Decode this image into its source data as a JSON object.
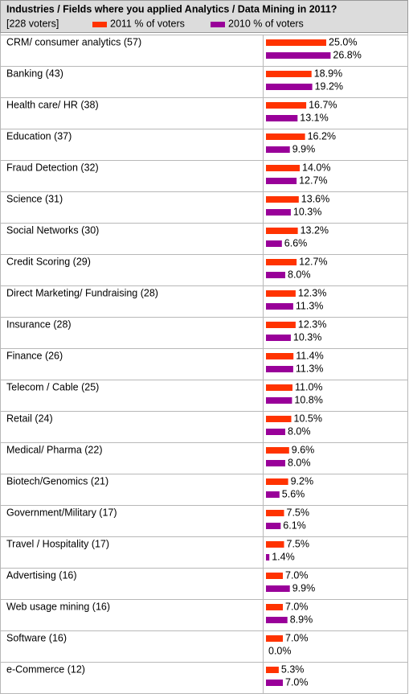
{
  "chart_data": {
    "type": "bar",
    "title": "Industries / Fields where you applied Analytics / Data Mining in 2011?",
    "subtitle": "[228 voters]",
    "categories": [
      "CRM/ consumer analytics (57)",
      "Banking (43)",
      "Health care/ HR (38)",
      "Education (37)",
      "Fraud Detection (32)",
      "Science (31)",
      "Social Networks (30)",
      "Credit Scoring (29)",
      "Direct Marketing/ Fundraising (28)",
      "Insurance (28)",
      "Finance (26)",
      "Telecom / Cable (25)",
      "Retail (24)",
      "Medical/ Pharma (22)",
      "Biotech/Genomics (21)",
      "Government/Military (17)",
      "Travel / Hospitality (17)",
      "Advertising (16)",
      "Web usage mining (16)",
      "Software (16)",
      "e-Commerce (12)"
    ],
    "series": [
      {
        "name": "2011 % of voters",
        "color": "#ff3300",
        "values": [
          25.0,
          18.9,
          16.7,
          16.2,
          14.0,
          13.6,
          13.2,
          12.7,
          12.3,
          12.3,
          11.4,
          11.0,
          10.5,
          9.6,
          9.2,
          7.5,
          7.5,
          7.0,
          7.0,
          7.0,
          5.3
        ],
        "value_labels": [
          "25.0%",
          "18.9%",
          "16.7%",
          "16.2%",
          "14.0%",
          "13.6%",
          "13.2%",
          "12.7%",
          "12.3%",
          "12.3%",
          "11.4%",
          "11.0%",
          "10.5%",
          "9.6%",
          "9.2%",
          "7.5%",
          "7.5%",
          "7.0%",
          "7.0%",
          "7.0%",
          "5.3%"
        ]
      },
      {
        "name": "2010 % of voters",
        "color": "#990099",
        "values": [
          26.8,
          19.2,
          13.1,
          9.9,
          12.7,
          10.3,
          6.6,
          8.0,
          11.3,
          10.3,
          11.3,
          10.8,
          8.0,
          8.0,
          5.6,
          6.1,
          1.4,
          9.9,
          8.9,
          0.0,
          7.0
        ],
        "value_labels": [
          "26.8%",
          "19.2%",
          "13.1%",
          "9.9%",
          "12.7%",
          "10.3%",
          "6.6%",
          "8.0%",
          "11.3%",
          "10.3%",
          "11.3%",
          "10.8%",
          "8.0%",
          "8.0%",
          "5.6%",
          "6.1%",
          "1.4%",
          "9.9%",
          "8.9%",
          "0.0%",
          "7.0%"
        ]
      }
    ]
  }
}
